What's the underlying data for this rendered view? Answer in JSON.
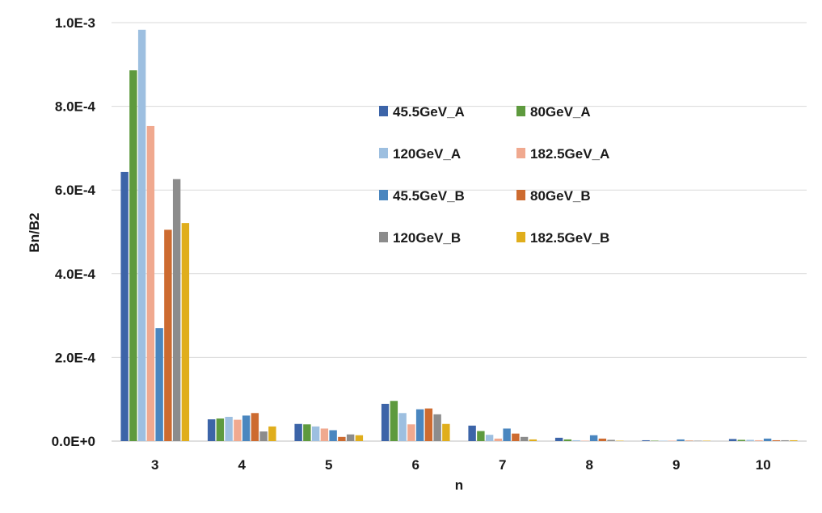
{
  "chart_data": {
    "type": "bar",
    "xlabel": "n",
    "ylabel": "Bn/B2",
    "categories": [
      "3",
      "4",
      "5",
      "6",
      "7",
      "8",
      "9",
      "10"
    ],
    "ylim": [
      0,
      0.001
    ],
    "y_ticks": [
      {
        "value": 0,
        "label": "0.0E+0"
      },
      {
        "value": 0.0002,
        "label": "2.0E-4"
      },
      {
        "value": 0.0004,
        "label": "4.0E-4"
      },
      {
        "value": 0.0006,
        "label": "6.0E-4"
      },
      {
        "value": 0.0008,
        "label": "8.0E-4"
      },
      {
        "value": 0.001,
        "label": "1.0E-3"
      }
    ],
    "grid": true,
    "legend_position": "upper-center",
    "series": [
      {
        "name": "45.5GeV_A",
        "color": "#3c64a8",
        "values": [
          0.000643,
          5.2e-05,
          4.1e-05,
          8.9e-05,
          3.7e-05,
          8e-06,
          2e-06,
          5e-06
        ]
      },
      {
        "name": "80GeV_A",
        "color": "#5e9a3e",
        "values": [
          0.000886,
          5.4e-05,
          4e-05,
          9.6e-05,
          2.4e-05,
          4e-06,
          1e-06,
          3e-06
        ]
      },
      {
        "name": "120GeV_A",
        "color": "#9dbfe0",
        "values": [
          0.000983,
          5.8e-05,
          3.5e-05,
          6.7e-05,
          1.5e-05,
          2e-06,
          1e-06,
          3e-06
        ]
      },
      {
        "name": "182.5GeV_A",
        "color": "#f0a98f",
        "values": [
          0.000753,
          5.1e-05,
          3e-05,
          4e-05,
          6e-06,
          1e-06,
          1e-06,
          2e-06
        ]
      },
      {
        "name": "45.5GeV_B",
        "color": "#4a86bf",
        "values": [
          0.00027,
          6.1e-05,
          2.6e-05,
          7.6e-05,
          3e-05,
          1.4e-05,
          4e-06,
          6e-06
        ]
      },
      {
        "name": "80GeV_B",
        "color": "#cd6b30",
        "values": [
          0.000505,
          6.7e-05,
          1e-05,
          7.8e-05,
          1.8e-05,
          6e-06,
          1e-06,
          2e-06
        ]
      },
      {
        "name": "120GeV_B",
        "color": "#8c8c8c",
        "values": [
          0.000626,
          2.3e-05,
          1.6e-05,
          6.4e-05,
          1e-05,
          3e-06,
          1e-06,
          2e-06
        ]
      },
      {
        "name": "182.5GeV_B",
        "color": "#e0ae1c",
        "values": [
          0.000521,
          3.5e-05,
          1.4e-05,
          4.1e-05,
          4e-06,
          1e-06,
          1e-06,
          2e-06
        ]
      }
    ]
  }
}
